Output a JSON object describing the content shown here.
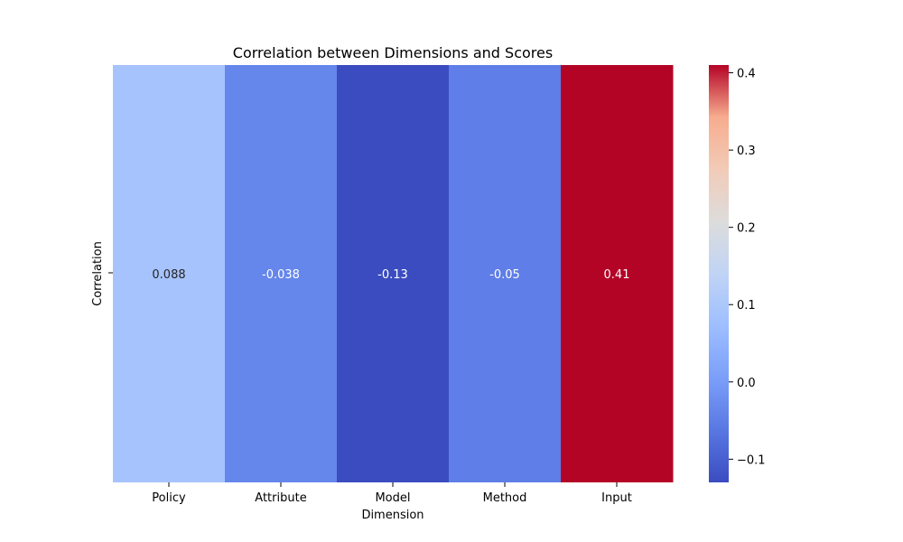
{
  "chart_data": {
    "type": "heatmap",
    "title": "Correlation between Dimensions and Scores",
    "xlabel": "Dimension",
    "ylabel": "Correlation",
    "x": [
      "Policy",
      "Attribute",
      "Model",
      "Method",
      "Input"
    ],
    "values": [
      0.088,
      -0.038,
      -0.13,
      -0.05,
      0.41
    ],
    "cell_labels": [
      "0.088",
      "-0.038",
      "-0.13",
      "-0.05",
      "0.41"
    ],
    "colormap": "coolwarm",
    "colorbar": {
      "range": [
        -0.13,
        0.41
      ],
      "ticks": [
        -0.1,
        0.0,
        0.1,
        0.2,
        0.3,
        0.4
      ],
      "tick_labels": [
        "−0.1",
        "0.0",
        "0.1",
        "0.2",
        "0.3",
        "0.4"
      ]
    }
  }
}
